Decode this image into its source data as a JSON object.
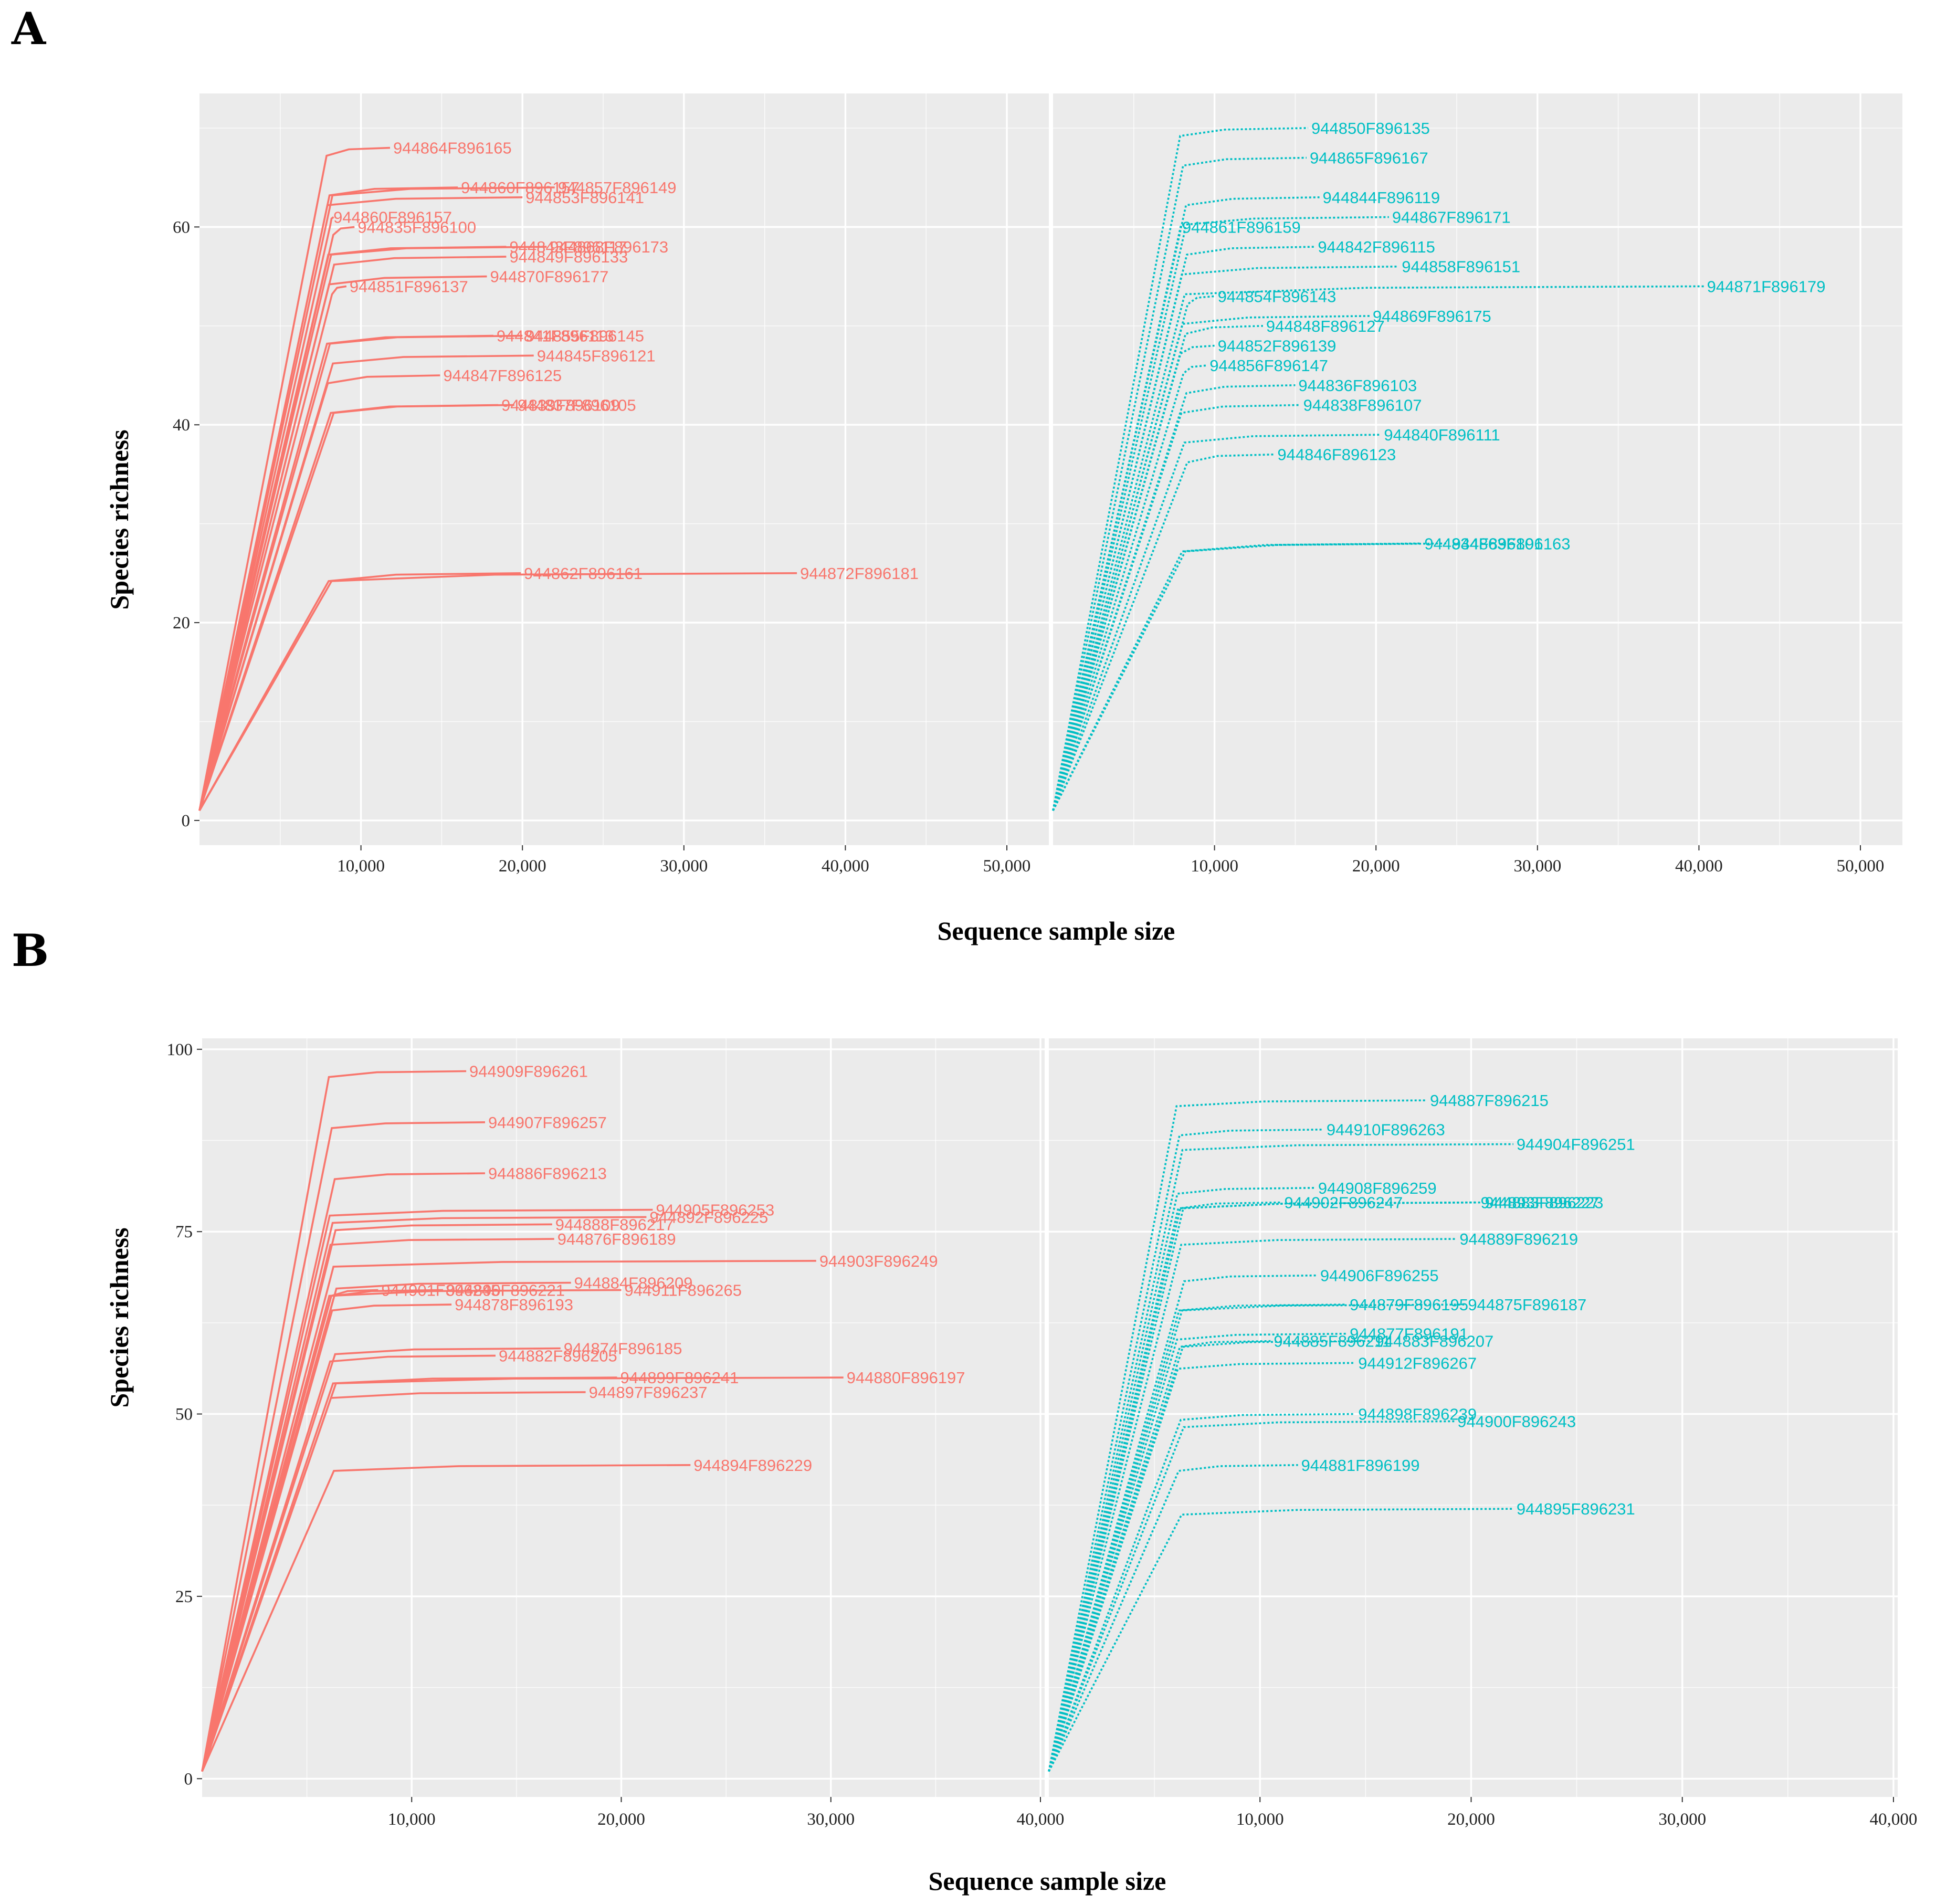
{
  "figure": {
    "panel_letters": [
      "A",
      "B"
    ],
    "colors": {
      "group1": "#f8766d",
      "group2": "#00bfc4"
    }
  },
  "chart_data": [
    {
      "type": "line",
      "panel": "A",
      "xlabel": "Sequence sample size",
      "ylabel": "Species richness",
      "yticks": [
        "0",
        "20",
        "40",
        "60"
      ],
      "xticks": [
        "10,000",
        "20,000",
        "30,000",
        "40,000",
        "50,000"
      ],
      "facets": [
        {
          "name": "left",
          "line_style": "solid",
          "color": "#f8766d",
          "xlim": [
            0,
            52600
          ],
          "ylim": [
            -2.5,
            73.5
          ],
          "series": [
            {
              "name": "944864F896165",
              "plateau": 68,
              "max_x": 11800
            },
            {
              "name": "944860F896157",
              "plateau": 64,
              "max_x": 16000
            },
            {
              "name": "944857F896149",
              "plateau": 64,
              "max_x": 22000
            },
            {
              "name": "944853F896141",
              "plateau": 63,
              "max_x": 20000
            },
            {
              "name": "944860F896157",
              "plateau": 61,
              "max_x": 8100
            },
            {
              "name": "944835F896100",
              "plateau": 60,
              "max_x": 9600
            },
            {
              "name": "944843F896117",
              "plateau": 58,
              "max_x": 19000
            },
            {
              "name": "944868F896173",
              "plateau": 58,
              "max_x": 21500
            },
            {
              "name": "944849F896133",
              "plateau": 57,
              "max_x": 19000
            },
            {
              "name": "944870F896177",
              "plateau": 55,
              "max_x": 17800
            },
            {
              "name": "944851F896137",
              "plateau": 54,
              "max_x": 9100
            },
            {
              "name": "944841F896113",
              "plateau": 49,
              "max_x": 18200
            },
            {
              "name": "944855F896145",
              "plateau": 49,
              "max_x": 20000
            },
            {
              "name": "944845F896121",
              "plateau": 47,
              "max_x": 20700
            },
            {
              "name": "944847F896125",
              "plateau": 45,
              "max_x": 14900
            },
            {
              "name": "944839F896109",
              "plateau": 42,
              "max_x": 18500
            },
            {
              "name": "944837F896105",
              "plateau": 42,
              "max_x": 19500
            },
            {
              "name": "944862F896161",
              "plateau": 25,
              "max_x": 19900
            },
            {
              "name": "944872F896181",
              "plateau": 25,
              "max_x": 37000
            }
          ]
        },
        {
          "name": "right",
          "line_style": "dotted",
          "color": "#00bfc4",
          "xlim": [
            0,
            52600
          ],
          "ylim": [
            -2.5,
            73.5
          ],
          "series": [
            {
              "name": "944850F896135",
              "plateau": 70,
              "max_x": 15800
            },
            {
              "name": "944865F896167",
              "plateau": 67,
              "max_x": 15700
            },
            {
              "name": "944844F896119",
              "plateau": 63,
              "max_x": 16500
            },
            {
              "name": "944867F896171",
              "plateau": 61,
              "max_x": 20800
            },
            {
              "name": "944861F896159",
              "plateau": 60,
              "max_x": 7800
            },
            {
              "name": "944842F896115",
              "plateau": 58,
              "max_x": 16200
            },
            {
              "name": "944858F896151",
              "plateau": 56,
              "max_x": 21400
            },
            {
              "name": "944871F896179",
              "plateau": 54,
              "max_x": 40300
            },
            {
              "name": "944854F896143",
              "plateau": 53,
              "max_x": 10000
            },
            {
              "name": "944869F896175",
              "plateau": 51,
              "max_x": 19600
            },
            {
              "name": "944848F896127",
              "plateau": 50,
              "max_x": 13000
            },
            {
              "name": "944852F896139",
              "plateau": 48,
              "max_x": 10000
            },
            {
              "name": "944856F896147",
              "plateau": 46,
              "max_x": 9500
            },
            {
              "name": "944836F896103",
              "plateau": 44,
              "max_x": 15000
            },
            {
              "name": "944838F896107",
              "plateau": 42,
              "max_x": 15300
            },
            {
              "name": "944840F896111",
              "plateau": 39,
              "max_x": 20300
            },
            {
              "name": "944846F896123",
              "plateau": 37,
              "max_x": 13700
            },
            {
              "name": "944834F896101",
              "plateau": 28,
              "max_x": 22800
            },
            {
              "name": "944863F896163",
              "plateau": 28,
              "max_x": 24500
            }
          ]
        }
      ]
    },
    {
      "type": "line",
      "panel": "B",
      "xlabel": "Sequence sample size",
      "ylabel": "Species richness",
      "yticks": [
        "0",
        "25",
        "50",
        "75",
        "100"
      ],
      "xticks": [
        "10,000",
        "20,000",
        "30,000",
        "40,000"
      ],
      "facets": [
        {
          "name": "left",
          "line_style": "solid",
          "color": "#f8766d",
          "xlim": [
            0,
            40200
          ],
          "ylim": [
            -2.5,
            101.5
          ],
          "series": [
            {
              "name": "944909F896261",
              "plateau": 97,
              "max_x": 12600
            },
            {
              "name": "944907F896257",
              "plateau": 90,
              "max_x": 13500
            },
            {
              "name": "944886F896213",
              "plateau": 83,
              "max_x": 13500
            },
            {
              "name": "944905F896253",
              "plateau": 78,
              "max_x": 21500
            },
            {
              "name": "944892F896225",
              "plateau": 77,
              "max_x": 21200
            },
            {
              "name": "944888F896217",
              "plateau": 76,
              "max_x": 16700
            },
            {
              "name": "944876F896189",
              "plateau": 74,
              "max_x": 16800
            },
            {
              "name": "944903F896249",
              "plateau": 71,
              "max_x": 29300
            },
            {
              "name": "944884F896209",
              "plateau": 68,
              "max_x": 17600
            },
            {
              "name": "944901F896245",
              "plateau": 67,
              "max_x": 8400
            },
            {
              "name": "944890F896221",
              "plateau": 67,
              "max_x": 11500
            },
            {
              "name": "944911F896265",
              "plateau": 67,
              "max_x": 20000
            },
            {
              "name": "944878F896193",
              "plateau": 65,
              "max_x": 11900
            },
            {
              "name": "944874F896185",
              "plateau": 59,
              "max_x": 17100
            },
            {
              "name": "944882F896205",
              "plateau": 58,
              "max_x": 14000
            },
            {
              "name": "944899F896241",
              "plateau": 55,
              "max_x": 19800
            },
            {
              "name": "944880F896197",
              "plateau": 55,
              "max_x": 30600
            },
            {
              "name": "944897F896237",
              "plateau": 53,
              "max_x": 18300
            },
            {
              "name": "944894F896229",
              "plateau": 43,
              "max_x": 23300
            }
          ]
        },
        {
          "name": "right",
          "line_style": "dotted",
          "color": "#00bfc4",
          "xlim": [
            0,
            40200
          ],
          "ylim": [
            -2.5,
            101.5
          ],
          "series": [
            {
              "name": "944887F896215",
              "plateau": 93,
              "max_x": 17900
            },
            {
              "name": "944910F896263",
              "plateau": 89,
              "max_x": 13000
            },
            {
              "name": "944904F896251",
              "plateau": 87,
              "max_x": 22000
            },
            {
              "name": "944908F896259",
              "plateau": 81,
              "max_x": 12600
            },
            {
              "name": "944902F896247",
              "plateau": 79,
              "max_x": 11000
            },
            {
              "name": "944893F896227",
              "plateau": 79,
              "max_x": 20300
            },
            {
              "name": "944883F896223",
              "plateau": 79,
              "max_x": 20500
            },
            {
              "name": "944889F896219",
              "plateau": 74,
              "max_x": 19300
            },
            {
              "name": "944906F896255",
              "plateau": 69,
              "max_x": 12700
            },
            {
              "name": "944879F896195",
              "plateau": 65,
              "max_x": 14100
            },
            {
              "name": "944875F896187",
              "plateau": 65,
              "max_x": 19700
            },
            {
              "name": "944877F896191",
              "plateau": 61,
              "max_x": 14100
            },
            {
              "name": "944885F896211",
              "plateau": 60,
              "max_x": 10500
            },
            {
              "name": "944883F896207",
              "plateau": 60,
              "max_x": 15300
            },
            {
              "name": "944912F896267",
              "plateau": 57,
              "max_x": 14500
            },
            {
              "name": "944898F896239",
              "plateau": 50,
              "max_x": 14500
            },
            {
              "name": "944900F896243",
              "plateau": 49,
              "max_x": 19200
            },
            {
              "name": "944881F896199",
              "plateau": 43,
              "max_x": 11800
            },
            {
              "name": "944895F896231",
              "plateau": 37,
              "max_x": 22000
            }
          ]
        }
      ]
    }
  ]
}
